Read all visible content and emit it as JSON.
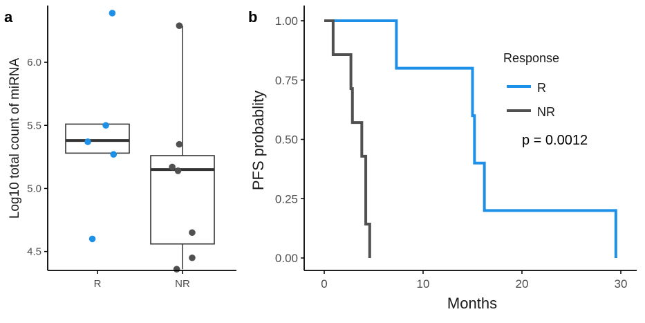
{
  "colors": {
    "R": "#1E90E8",
    "NR": "#505050"
  },
  "chart_data": [
    {
      "panel": "a",
      "type": "box",
      "title": "",
      "xlabel": "",
      "ylabel": "Log10 total count of miRNA",
      "categories": [
        "R",
        "NR"
      ],
      "ylim": [
        4.35,
        6.45
      ],
      "yticks": [
        4.5,
        5.0,
        5.5,
        6.0
      ],
      "ytick_labels": [
        "4.5",
        "5.0",
        "5.5",
        "6.0"
      ],
      "boxes": [
        {
          "category": "R",
          "q1": 5.28,
          "median": 5.38,
          "q3": 5.51,
          "whisker_low": 5.28,
          "whisker_high": 5.51
        },
        {
          "category": "NR",
          "q1": 4.56,
          "median": 5.15,
          "q3": 5.26,
          "whisker_low": 4.36,
          "whisker_high": 6.29
        }
      ],
      "points": [
        {
          "category": "R",
          "jitter": -0.15,
          "value": 5.37
        },
        {
          "category": "R",
          "jitter": 0.13,
          "value": 5.5
        },
        {
          "category": "R",
          "jitter": 0.25,
          "value": 5.27
        },
        {
          "category": "R",
          "jitter": 0.23,
          "value": 6.39
        },
        {
          "category": "R",
          "jitter": -0.08,
          "value": 4.6
        },
        {
          "category": "NR",
          "jitter": -0.05,
          "value": 6.29
        },
        {
          "category": "NR",
          "jitter": -0.05,
          "value": 5.35
        },
        {
          "category": "NR",
          "jitter": -0.16,
          "value": 5.17
        },
        {
          "category": "NR",
          "jitter": -0.07,
          "value": 5.14
        },
        {
          "category": "NR",
          "jitter": 0.15,
          "value": 4.65
        },
        {
          "category": "NR",
          "jitter": 0.15,
          "value": 4.45
        },
        {
          "category": "NR",
          "jitter": -0.09,
          "value": 4.36
        }
      ]
    },
    {
      "panel": "b",
      "type": "line",
      "subtype": "step",
      "title": "",
      "xlabel": "Months",
      "ylabel": "PFS probablity",
      "xlim": [
        -2,
        32
      ],
      "ylim": [
        0,
        1.0
      ],
      "xticks": [
        0,
        10,
        20,
        30
      ],
      "xtick_labels": [
        "0",
        "10",
        "20",
        "30"
      ],
      "yticks": [
        0,
        0.25,
        0.5,
        0.75,
        1.0
      ],
      "ytick_labels": [
        "0.00",
        "0.25",
        "0.50",
        "0.75",
        "1.00"
      ],
      "legend_title": "Response",
      "legend_position": "right-inside",
      "annotation": "p = 0.0012",
      "series": [
        {
          "name": "R",
          "x": [
            0,
            7.3,
            15,
            15.2,
            16.2,
            29.5
          ],
          "y": [
            1.0,
            0.8,
            0.6,
            0.4,
            0.2,
            0.0
          ]
        },
        {
          "name": "NR",
          "x": [
            0,
            0.9,
            2.7,
            2.85,
            3.8,
            4.2,
            4.6
          ],
          "y": [
            1.0,
            0.857,
            0.714,
            0.571,
            0.429,
            0.143,
            0.0
          ]
        }
      ]
    }
  ]
}
